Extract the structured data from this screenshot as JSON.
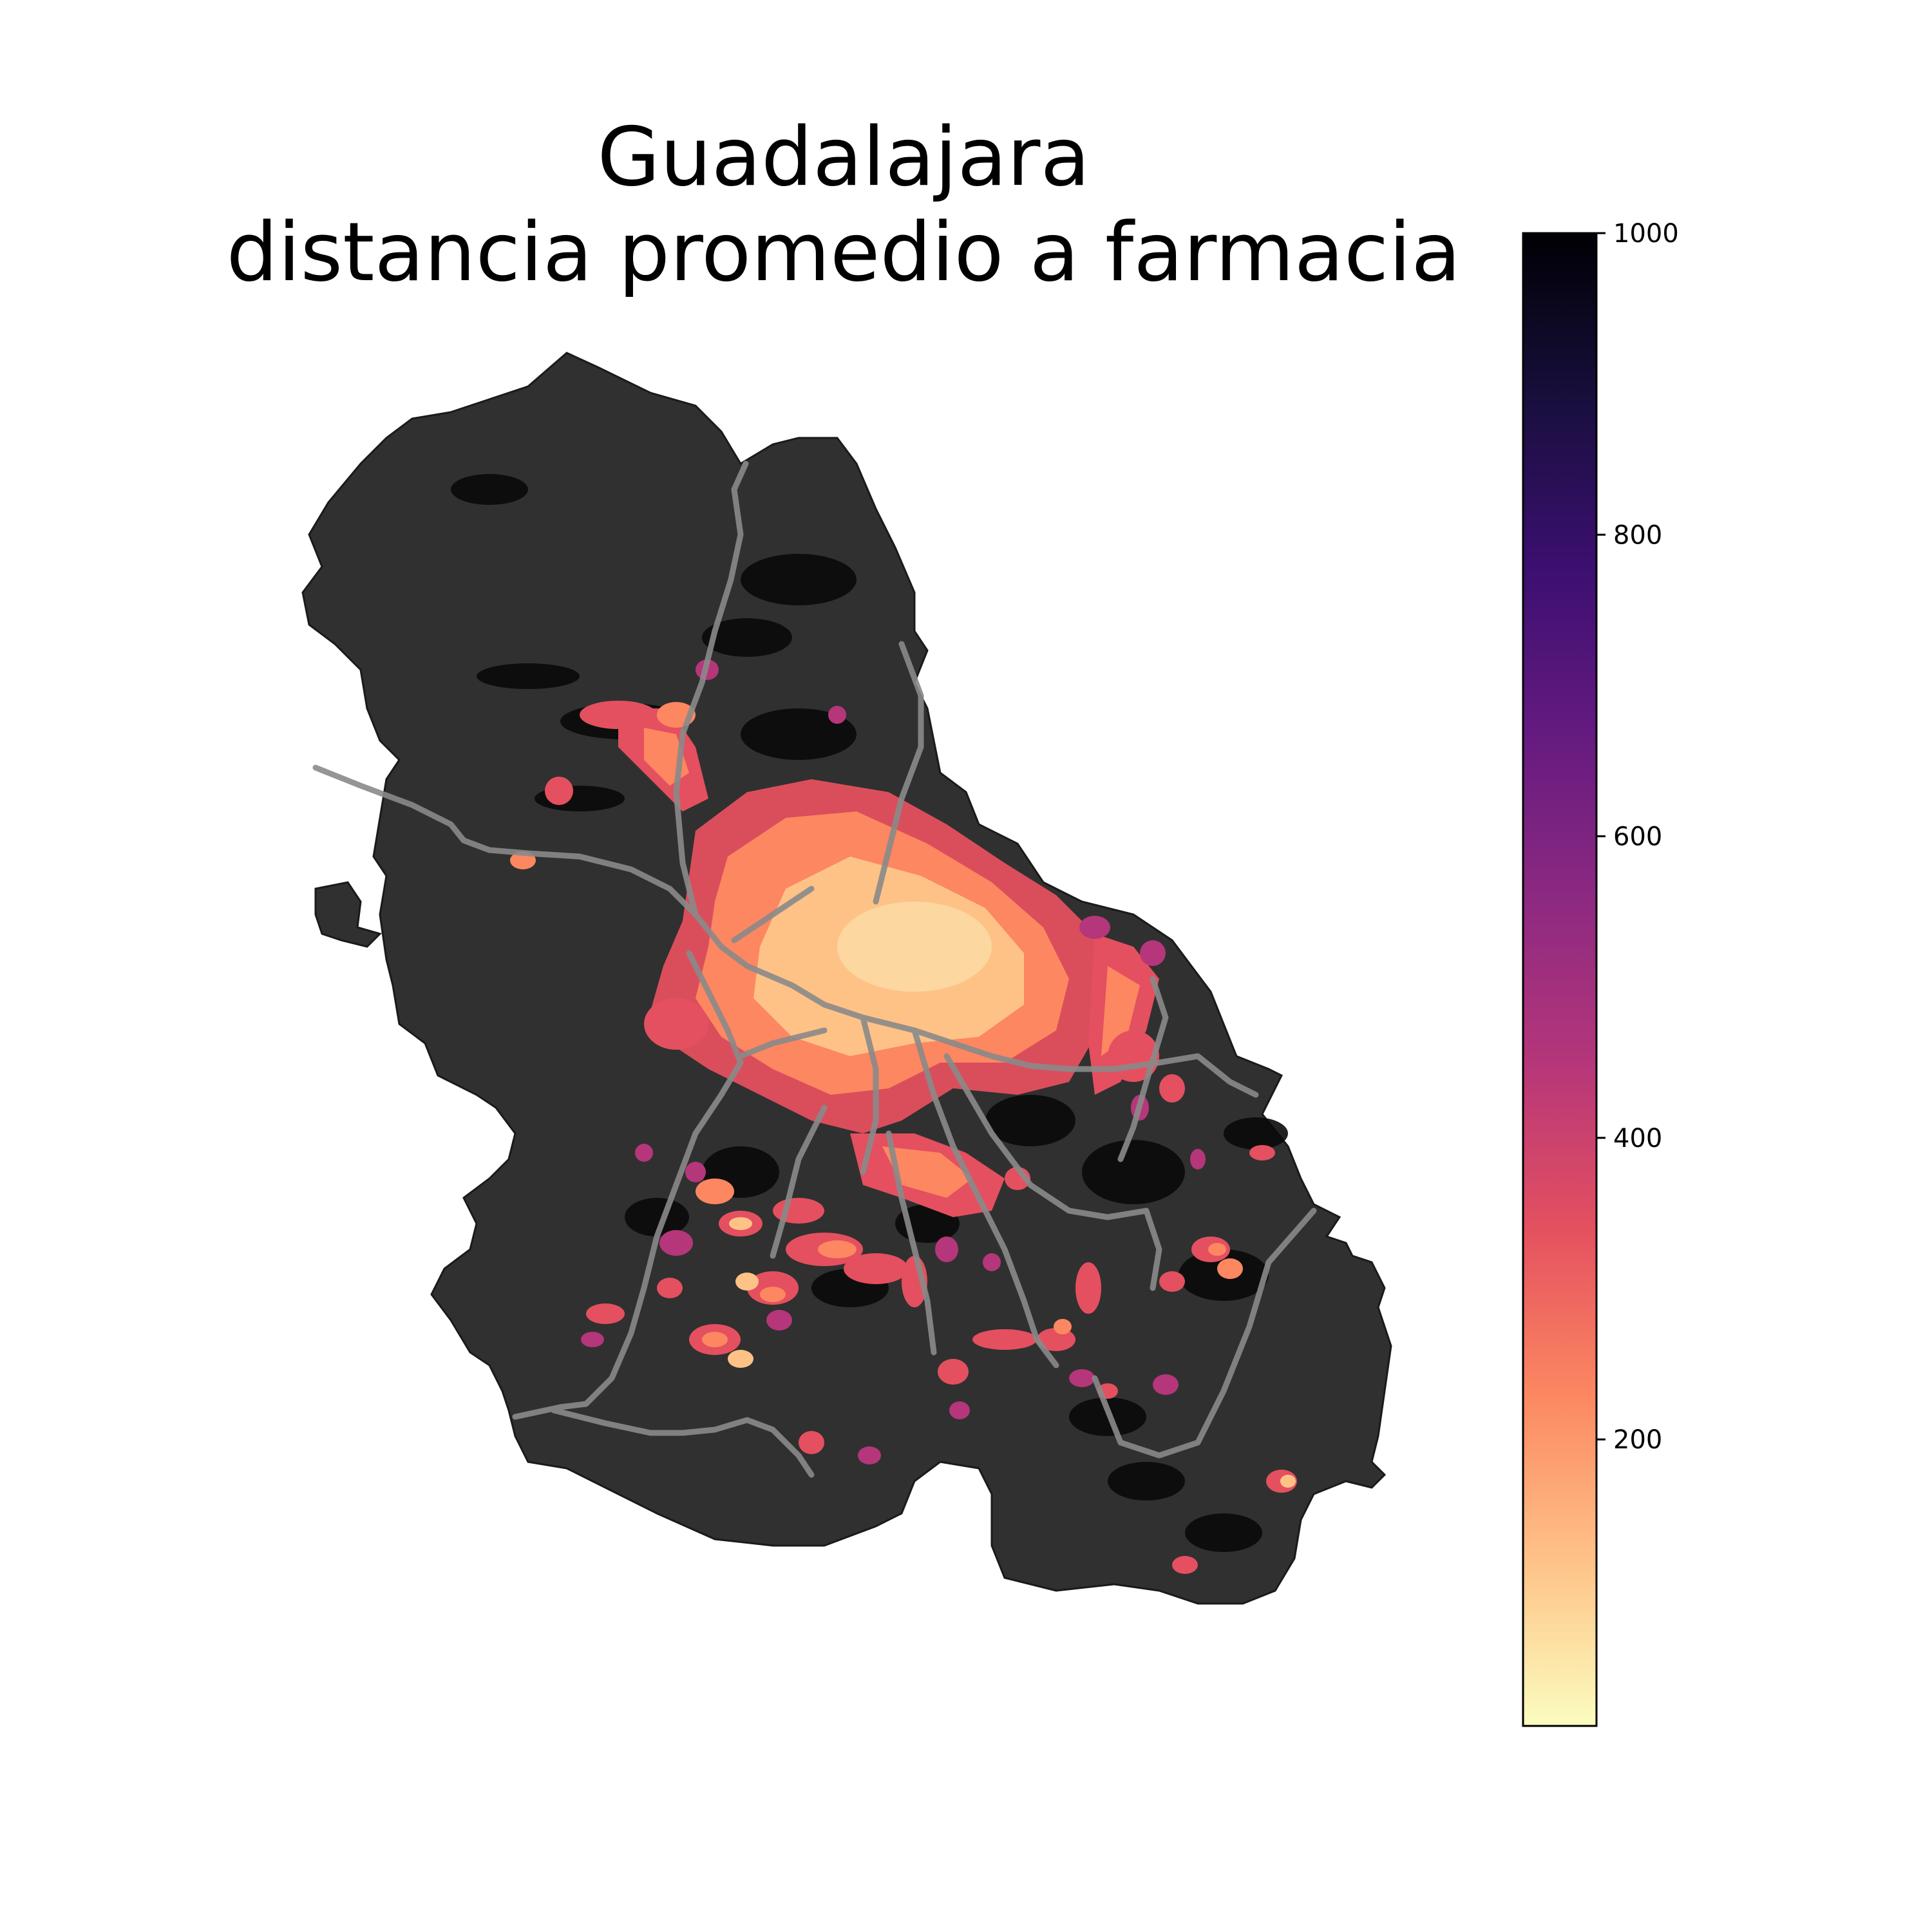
{
  "title_lines": [
    "Guadalajara",
    "distancia promedio a farmacia"
  ],
  "colormap": {
    "name": "magma_r",
    "stops": [
      "#fcfdbf",
      "#fec287",
      "#fc8761",
      "#e4505f",
      "#b5367a",
      "#8c2981",
      "#641a80",
      "#3b0f70",
      "#180f3d",
      "#000004"
    ]
  },
  "colorbar": {
    "vmin": 10,
    "vmax": 1000,
    "ticks": [
      {
        "value": 200,
        "label": "200"
      },
      {
        "value": 400,
        "label": "400"
      },
      {
        "value": 600,
        "label": "600"
      },
      {
        "value": 800,
        "label": "800"
      },
      {
        "value": 1000,
        "label": "1000"
      }
    ]
  },
  "map": {
    "base_color": "#303030",
    "no_data_color": "#0a0a0a",
    "road_color": "#8a8a8a"
  }
}
